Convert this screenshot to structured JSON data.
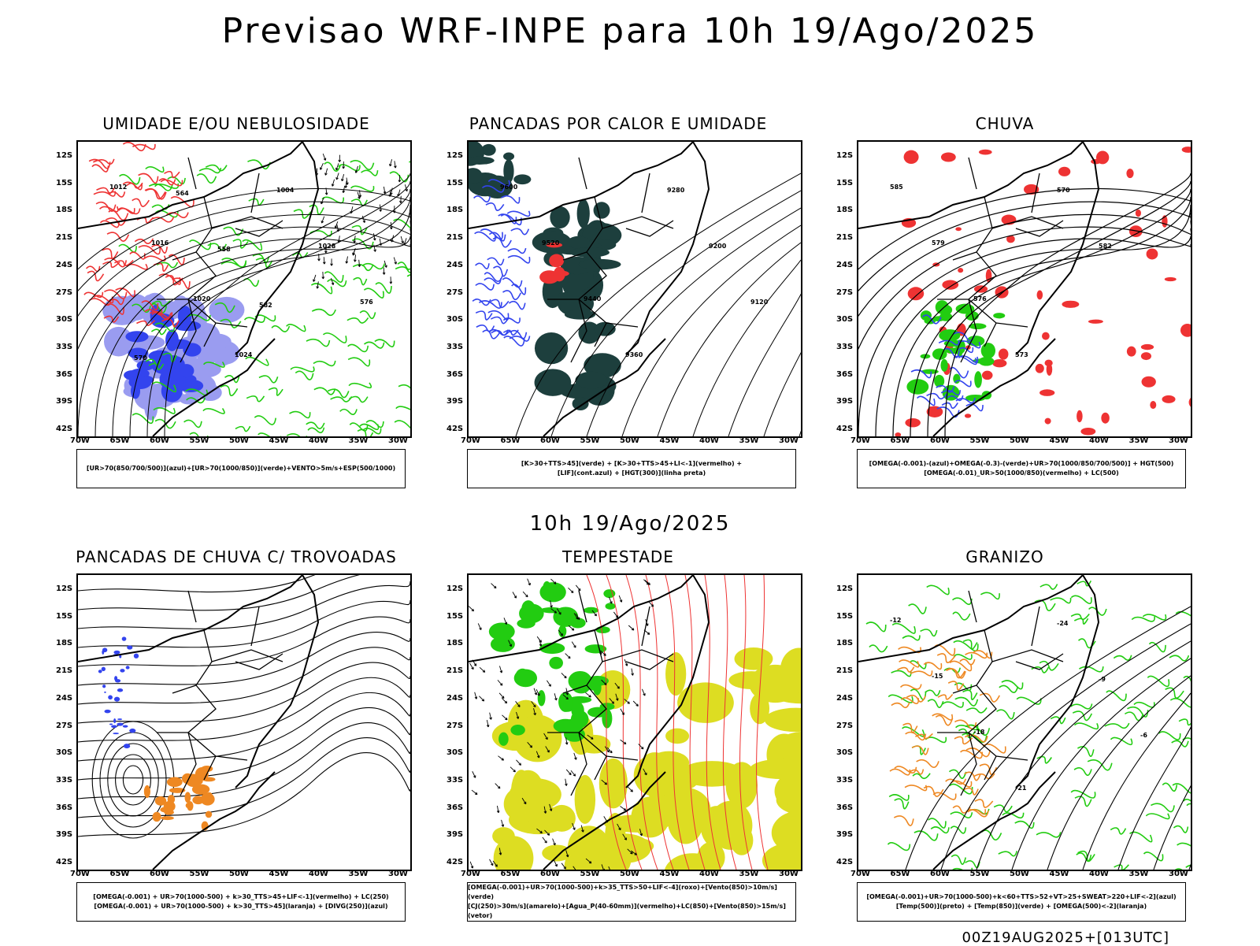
{
  "title": "Previsao WRF-INPE  para 10h 19/Ago/2025",
  "mid_time": "10h 19/Ago/2025",
  "footer": "00Z19AUG2025+[013UTC]",
  "lat_labels": [
    "12S",
    "15S",
    "18S",
    "21S",
    "24S",
    "27S",
    "30S",
    "33S",
    "36S",
    "39S",
    "42S"
  ],
  "lon_labels": [
    "70W",
    "65W",
    "60W",
    "55W",
    "50W",
    "45W",
    "40W",
    "35W",
    "30W"
  ],
  "panels": [
    {
      "title": "UMIDADE E/OU NEBULOSIDADE",
      "legend": [
        "[UR>70(850/700/500)](azul)+[UR>70(1000/850)](verde)+VENTO>5m/s+ESP(500/1000)"
      ],
      "contour_labels": [
        "1012",
        "1016",
        "1020",
        "1024",
        "1004",
        "1028",
        "576",
        "570",
        "564",
        "558",
        "582"
      ]
    },
    {
      "title": "PANCADAS POR CALOR E UMIDADE",
      "legend": [
        "[K>30+TTS>45](verde) + [K>30+TTS>45+LI<-1](vermelho) +",
        "[LIF](cont.azul) + [HGT(300)](linha preta)"
      ],
      "contour_labels": [
        "9600",
        "9520",
        "9440",
        "9360",
        "9280",
        "9200",
        "9120"
      ]
    },
    {
      "title": "CHUVA",
      "legend": [
        "[OMEGA(-0.001)-(azul)+OMEGA(-0.3)-(verde)+UR>70(1000/850/700/500)] + HGT(500)",
        "[OMEGA(-0.01)_UR>50(1000/850)(vermelho) + LC(500)"
      ],
      "contour_labels": [
        "585",
        "579",
        "576",
        "573",
        "570",
        "582"
      ]
    },
    {
      "title": "PANCADAS DE CHUVA C/ TROVOADAS",
      "legend": [
        "[OMEGA(-0.001) + UR>70(1000-500) + k>30_TTS>45+LIF<-1](vermelho) + LC(250)",
        "[OMEGA(-0.001) + UR>70(1000-500) + k>30_TTS>45](laranja) + [DIVG(250)](azul)"
      ],
      "contour_labels": []
    },
    {
      "title": "TEMPESTADE",
      "legend": [
        "[OMEGA(-0.001)+UR>70(1000-500)+k>35_TTS>50+LIF<-4](roxo)+[Vento(850)>10m/s](verde)",
        "[CJ(250)>30m/s](amarelo)+[Agua_P(40-60mm)](vermelho)+LC(850)+[Vento(850)>15m/s](vetor)"
      ],
      "contour_labels": []
    },
    {
      "title": "GRANIZO",
      "legend": [
        "[OMEGA(-0.001)+UR>70(1000-500)+k<60+TTS>52+VT>25+SWEAT>220+LIF<-2](azul)",
        "[Temp(500)](preto) + [Temp(850)](verde) + [OMEGA(500)<-2](laranja)"
      ],
      "contour_labels": [
        "-12",
        "-15",
        "-18",
        "-21",
        "-24",
        "-9",
        "-6"
      ]
    }
  ],
  "colors": {
    "blue": "#3344ee",
    "green": "#22cc11",
    "red": "#ee3333",
    "orange": "#ee8822",
    "yellow": "#dddd22",
    "dark_teal": "#1d3f3d",
    "light_blue": "#9a9cf0"
  }
}
